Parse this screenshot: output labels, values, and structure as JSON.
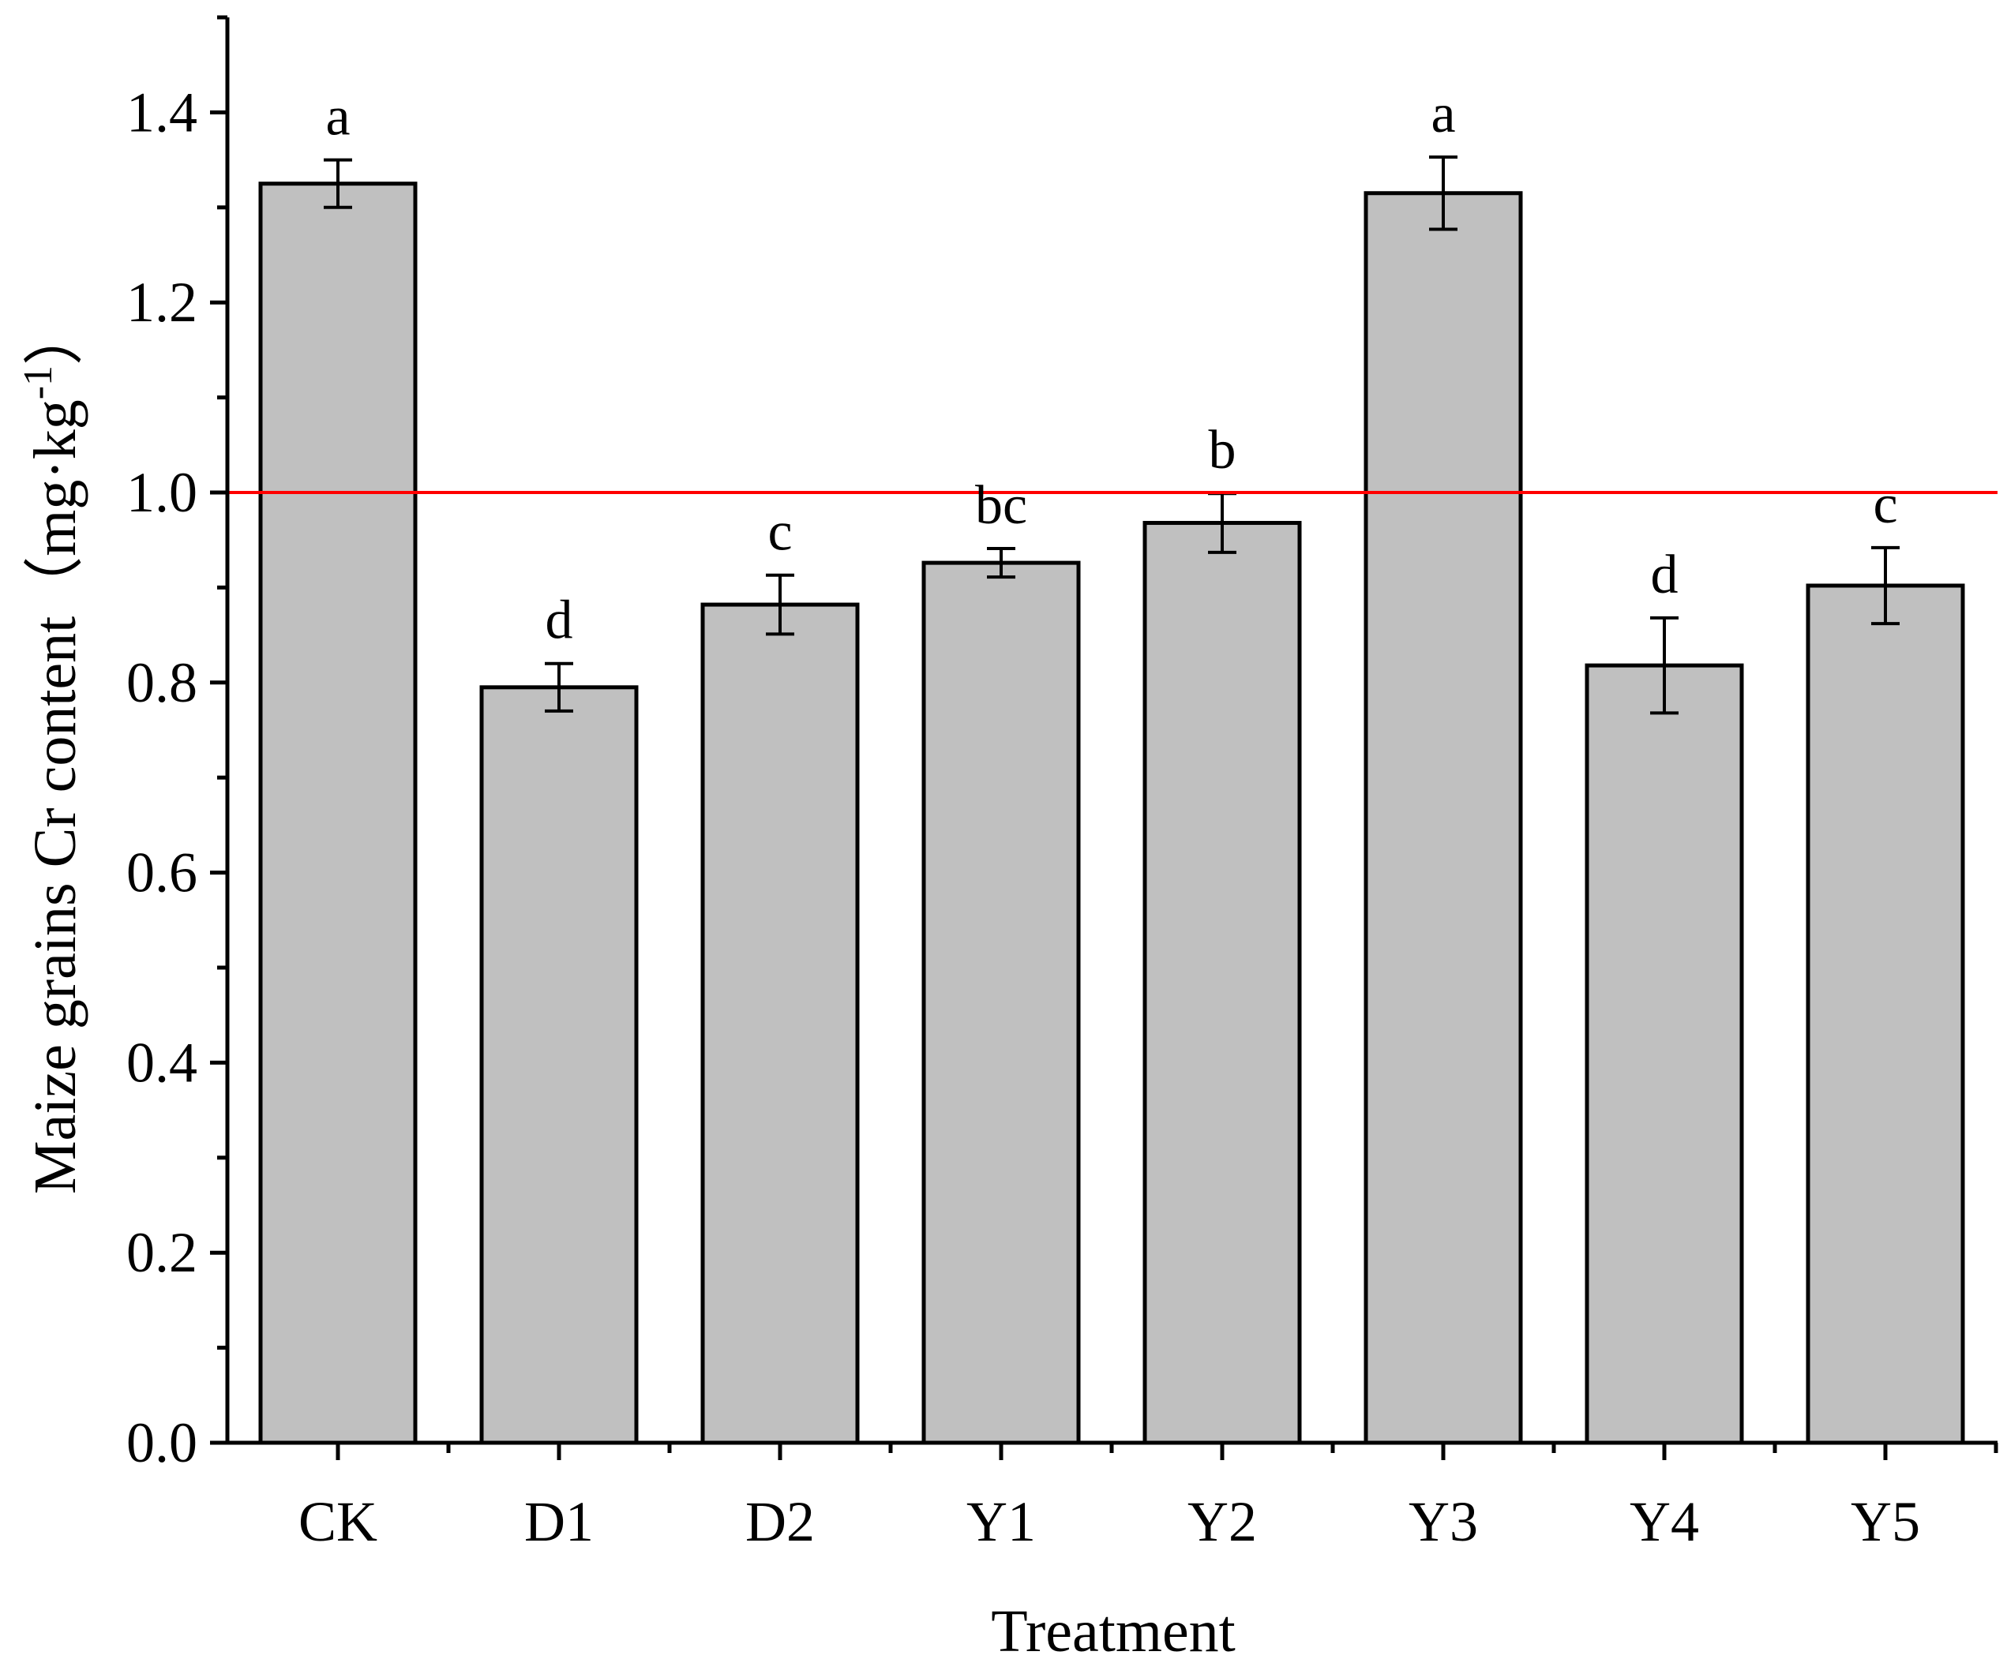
{
  "chart_data": {
    "type": "bar",
    "categories": [
      "CK",
      "D1",
      "D2",
      "Y1",
      "Y2",
      "Y3",
      "Y4",
      "Y5"
    ],
    "values": [
      1.325,
      0.795,
      0.882,
      0.926,
      0.968,
      1.315,
      0.818,
      0.902
    ],
    "errors": [
      0.025,
      0.025,
      0.031,
      0.015,
      0.031,
      0.038,
      0.05,
      0.04
    ],
    "significance_letters": [
      "a",
      "d",
      "c",
      "bc",
      "b",
      "a",
      "d",
      "c"
    ],
    "xlabel": "Treatment",
    "ylabel": "Maize grains Cr content（mg·kg",
    "ylabel_superscript": "-1",
    "ylabel_close": "）",
    "ylim": [
      0.0,
      1.5
    ],
    "yticks": [
      "0.0",
      "0.2",
      "0.4",
      "0.6",
      "0.8",
      "1.0",
      "1.2",
      "1.4"
    ],
    "reference_line": {
      "value": 1.0,
      "color": "#ff0000"
    },
    "bar_color": "#c0c0c0",
    "grid": false,
    "title": ""
  }
}
